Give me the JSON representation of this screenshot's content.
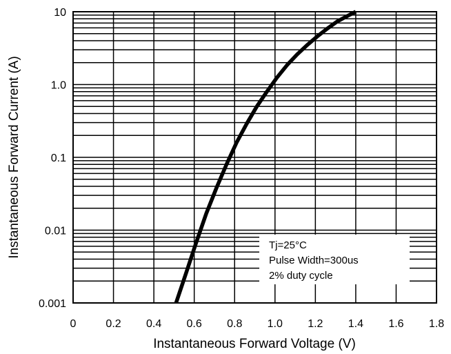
{
  "chart_data": {
    "type": "line",
    "title": "",
    "xlabel": "Instantaneous Forward Voltage (V)",
    "ylabel": "Instantaneous Forward Current (A)",
    "xlim": [
      0,
      1.8
    ],
    "ylim": [
      0.001,
      10
    ],
    "yscale": "log",
    "grid": true,
    "x_ticks": [
      0,
      0.2,
      0.4,
      0.6,
      0.8,
      1.0,
      1.2,
      1.4,
      1.6,
      1.8
    ],
    "x_tick_labels": [
      "0",
      "0.2",
      "0.4",
      "0.6",
      "0.8",
      "1.0",
      "1.2",
      "1.4",
      "1.6",
      "1.8"
    ],
    "y_ticks": [
      0.001,
      0.01,
      0.1,
      1,
      10
    ],
    "y_tick_labels": [
      "0.001",
      "0.01",
      "0.1",
      "1.0",
      "10"
    ],
    "series": [
      {
        "x": [
          0.51,
          0.56,
          0.61,
          0.66,
          0.71,
          0.76,
          0.81,
          0.86,
          0.91,
          0.96,
          1.01,
          1.06,
          1.11,
          1.16,
          1.21,
          1.26,
          1.31,
          1.36,
          1.4
        ],
        "y": [
          0.001,
          0.0026,
          0.0068,
          0.017,
          0.038,
          0.08,
          0.16,
          0.29,
          0.5,
          0.8,
          1.25,
          1.85,
          2.6,
          3.5,
          4.6,
          5.9,
          7.4,
          8.8,
          10
        ]
      }
    ],
    "annotations": [
      "Tj=25°C",
      "Pulse Width=300us",
      "2% duty cycle"
    ]
  }
}
